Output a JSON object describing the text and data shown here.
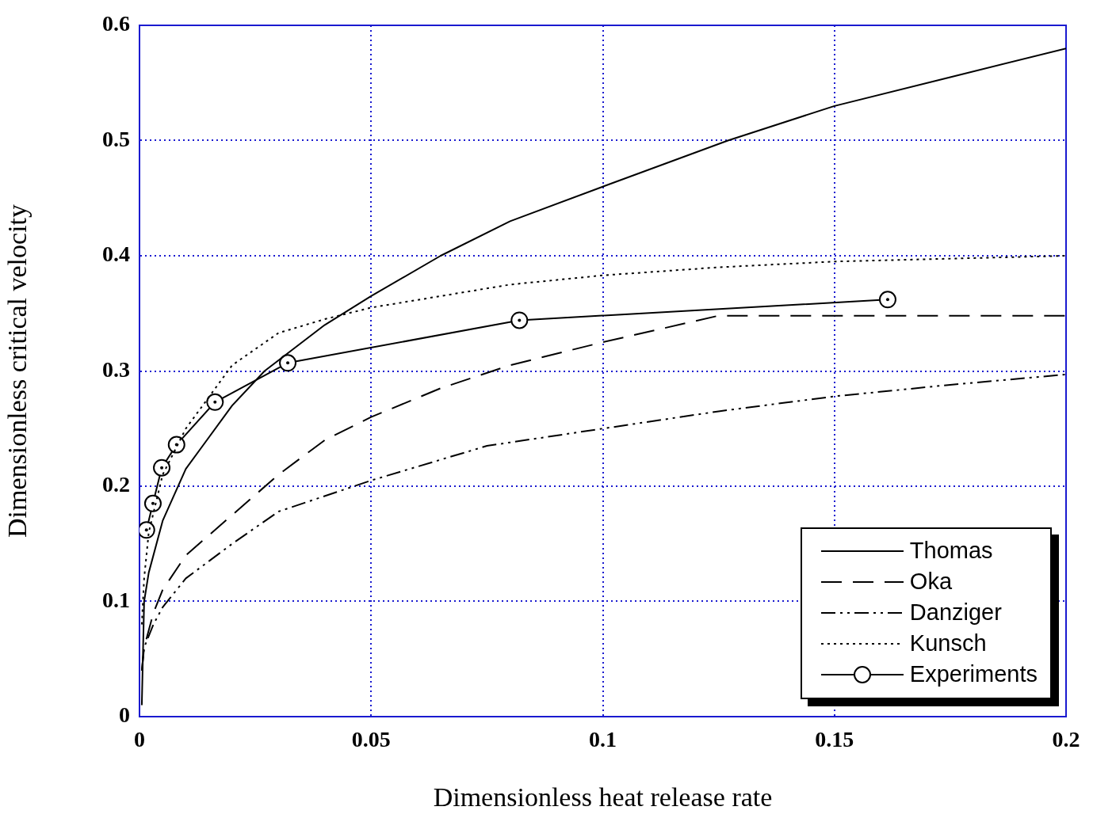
{
  "chart_data": {
    "type": "line",
    "xlabel": "Dimensionless heat release rate",
    "ylabel": "Dimensionless critical velocity",
    "xlim": [
      0,
      0.2
    ],
    "ylim": [
      0,
      0.6
    ],
    "xticks": [
      0,
      0.05,
      0.1,
      0.15,
      0.2
    ],
    "yticks": [
      0,
      0.1,
      0.2,
      0.3,
      0.4,
      0.5,
      0.6
    ],
    "grid": true,
    "legend": "bottom right",
    "series": [
      {
        "name": "Thomas",
        "color": "#000000",
        "line_style": "solid",
        "marker": "none",
        "x": [
          0.0005,
          0.001,
          0.002,
          0.005,
          0.01,
          0.02,
          0.027,
          0.04,
          0.05,
          0.065,
          0.08,
          0.1,
          0.127,
          0.15,
          0.175,
          0.2
        ],
        "values": [
          0.01,
          0.1,
          0.125,
          0.17,
          0.215,
          0.27,
          0.3,
          0.34,
          0.365,
          0.4,
          0.43,
          0.46,
          0.5,
          0.53,
          0.555,
          0.58
        ]
      },
      {
        "name": "Oka",
        "color": "#000000",
        "line_style": "dashed",
        "marker": "none",
        "x": [
          0.0005,
          0.001,
          0.003,
          0.005,
          0.01,
          0.02,
          0.03,
          0.04,
          0.05,
          0.065,
          0.08,
          0.1,
          0.125,
          0.15,
          0.2
        ],
        "values": [
          0.04,
          0.06,
          0.09,
          0.11,
          0.14,
          0.175,
          0.21,
          0.24,
          0.26,
          0.285,
          0.305,
          0.325,
          0.348,
          0.348,
          0.348
        ]
      },
      {
        "name": "Danziger",
        "color": "#000000",
        "line_style": "dashdot",
        "marker": "none",
        "x": [
          0.0005,
          0.001,
          0.003,
          0.005,
          0.01,
          0.02,
          0.03,
          0.05,
          0.075,
          0.1,
          0.125,
          0.15,
          0.175,
          0.2
        ],
        "values": [
          0.04,
          0.06,
          0.08,
          0.095,
          0.12,
          0.15,
          0.178,
          0.205,
          0.235,
          0.25,
          0.265,
          0.278,
          0.288,
          0.297
        ]
      },
      {
        "name": "Kunsch",
        "color": "#000000",
        "line_style": "dotted",
        "marker": "none",
        "x": [
          0.0005,
          0.001,
          0.002,
          0.005,
          0.01,
          0.02,
          0.03,
          0.04,
          0.05,
          0.08,
          0.1,
          0.125,
          0.15,
          0.2
        ],
        "values": [
          0.08,
          0.12,
          0.16,
          0.21,
          0.25,
          0.305,
          0.333,
          0.345,
          0.355,
          0.375,
          0.383,
          0.39,
          0.395,
          0.4
        ]
      },
      {
        "name": "Experiments",
        "color": "#000000",
        "line_style": "solid",
        "marker": "circle",
        "x": [
          0.0015,
          0.0029,
          0.0048,
          0.008,
          0.0163,
          0.032,
          0.082,
          0.1615
        ],
        "values": [
          0.162,
          0.185,
          0.216,
          0.236,
          0.273,
          0.307,
          0.344,
          0.362
        ]
      }
    ]
  }
}
